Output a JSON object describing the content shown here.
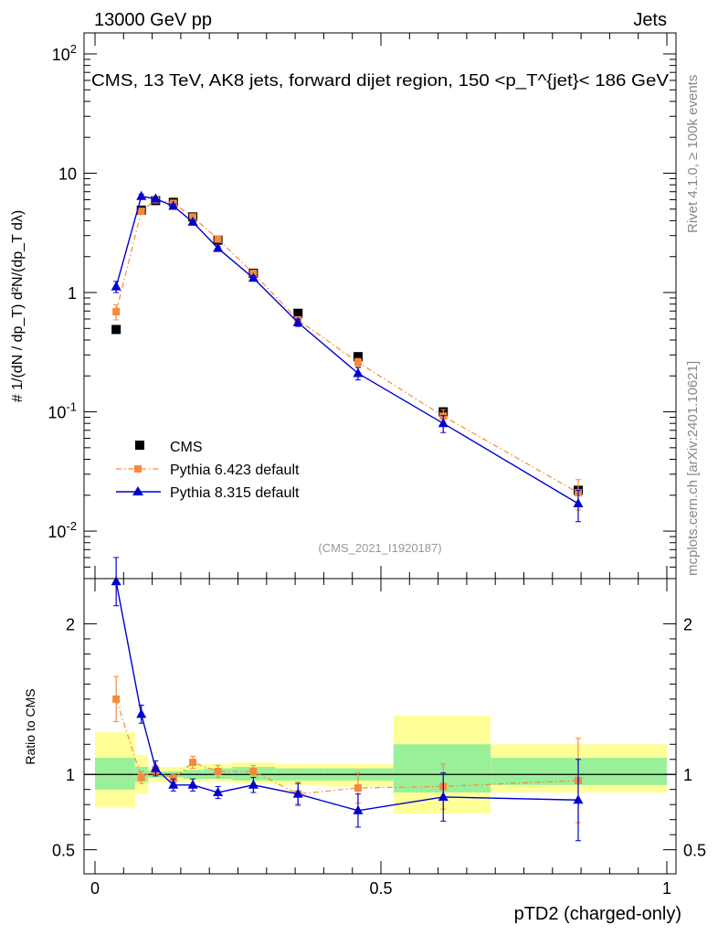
{
  "header": {
    "energy_label": "13000 GeV pp",
    "process_label": "Jets",
    "side_top": "Rivet 4.1.0, ≥ 100k events",
    "side_bottom": "mcplots.cern.ch [arXiv:2401.10621]"
  },
  "chart_data": {
    "type": "line",
    "title": "CMS, 13 TeV, AK8 jets, forward dijet region, 150 <p_T^{jet}< 186 GeV",
    "analysis_tag": "(CMS_2021_I1920187)",
    "xlabel": "pTD2 (charged-only)",
    "ylabel": "# 1/(dN / dp_T) d²N/(dp_T dλ)",
    "xlim": [
      0,
      1
    ],
    "x_ticks": [
      "0",
      "0.5",
      "1"
    ],
    "main": {
      "yscale": "log",
      "ylim": [
        0.004,
        150
      ],
      "y_ticks": [
        "10^-2",
        "10^-1",
        "1",
        "10",
        "10^2"
      ],
      "series": [
        {
          "name": "CMS",
          "color": "#000000",
          "marker": "square",
          "x": [
            0.037,
            0.081,
            0.106,
            0.137,
            0.171,
            0.215,
            0.277,
            0.355,
            0.46,
            0.609,
            0.845
          ],
          "y": [
            0.49,
            4.9,
            5.9,
            5.7,
            4.3,
            2.75,
            1.45,
            0.67,
            0.29,
            0.1,
            0.022
          ]
        },
        {
          "name": "Pythia 6.423 default",
          "color": "#f58a3c",
          "marker": "square",
          "line": "dashdot",
          "x": [
            0.037,
            0.081,
            0.106,
            0.137,
            0.171,
            0.215,
            0.277,
            0.355,
            0.46,
            0.609,
            0.845
          ],
          "y": [
            0.69,
            4.8,
            6.0,
            5.6,
            4.3,
            2.8,
            1.45,
            0.59,
            0.26,
            0.092,
            0.021
          ],
          "err": [
            0.1,
            0.2,
            0.2,
            0.2,
            0.15,
            0.1,
            0.06,
            0.03,
            0.02,
            0.012,
            0.006
          ]
        },
        {
          "name": "Pythia 8.315 default",
          "color": "#0000d0",
          "marker": "triangle",
          "line": "solid",
          "x": [
            0.037,
            0.081,
            0.106,
            0.137,
            0.171,
            0.215,
            0.277,
            0.355,
            0.46,
            0.609,
            0.845
          ],
          "y": [
            1.12,
            6.4,
            6.1,
            5.3,
            3.9,
            2.35,
            1.32,
            0.56,
            0.21,
            0.08,
            0.017
          ],
          "err": [
            0.12,
            0.25,
            0.25,
            0.2,
            0.15,
            0.1,
            0.06,
            0.04,
            0.025,
            0.013,
            0.005
          ]
        }
      ]
    },
    "ratio": {
      "ylabel": "Ratio to CMS",
      "ylim": [
        0.34,
        2.3
      ],
      "y_ticks": [
        "0.5",
        "1",
        "2"
      ],
      "bands": [
        {
          "x0": 0.0,
          "x1": 0.07,
          "y_lo": 0.78,
          "y_hi": 1.28,
          "g_lo": 0.9,
          "g_hi": 1.11
        },
        {
          "x0": 0.07,
          "x1": 0.093,
          "y_lo": 0.87,
          "y_hi": 1.13,
          "g_lo": 0.95,
          "g_hi": 1.05
        },
        {
          "x0": 0.093,
          "x1": 0.121,
          "y_lo": 0.95,
          "y_hi": 1.05,
          "g_lo": 0.98,
          "g_hi": 1.02
        },
        {
          "x0": 0.121,
          "x1": 0.155,
          "y_lo": 0.95,
          "y_hi": 1.05,
          "g_lo": 0.98,
          "g_hi": 1.02
        },
        {
          "x0": 0.155,
          "x1": 0.19,
          "y_lo": 0.95,
          "y_hi": 1.06,
          "g_lo": 0.97,
          "g_hi": 1.03
        },
        {
          "x0": 0.19,
          "x1": 0.24,
          "y_lo": 0.95,
          "y_hi": 1.07,
          "g_lo": 0.97,
          "g_hi": 1.04
        },
        {
          "x0": 0.24,
          "x1": 0.315,
          "y_lo": 0.94,
          "y_hi": 1.08,
          "g_lo": 0.96,
          "g_hi": 1.05
        },
        {
          "x0": 0.315,
          "x1": 0.4,
          "y_lo": 0.93,
          "y_hi": 1.07,
          "g_lo": 0.96,
          "g_hi": 1.04
        },
        {
          "x0": 0.4,
          "x1": 0.522,
          "y_lo": 0.92,
          "y_hi": 1.07,
          "g_lo": 0.96,
          "g_hi": 1.04
        },
        {
          "x0": 0.522,
          "x1": 0.692,
          "y_lo": 0.74,
          "y_hi": 1.39,
          "g_lo": 0.88,
          "g_hi": 1.2
        },
        {
          "x0": 0.692,
          "x1": 1.0,
          "y_lo": 0.88,
          "y_hi": 1.2,
          "g_lo": 0.93,
          "g_hi": 1.11
        }
      ],
      "series": [
        {
          "name": "Pythia 6.423 default",
          "color": "#f58a3c",
          "marker": "square",
          "line": "dashdot",
          "x": [
            0.037,
            0.081,
            0.106,
            0.137,
            0.171,
            0.215,
            0.277,
            0.355,
            0.46,
            0.609,
            0.845
          ],
          "y": [
            1.5,
            0.98,
            1.03,
            0.97,
            1.08,
            1.02,
            1.02,
            0.87,
            0.91,
            0.92,
            0.96
          ],
          "err": [
            0.15,
            0.04,
            0.03,
            0.03,
            0.04,
            0.04,
            0.04,
            0.08,
            0.1,
            0.15,
            0.28
          ]
        },
        {
          "name": "Pythia 8.315 default",
          "color": "#0000d0",
          "marker": "triangle",
          "line": "solid",
          "x": [
            0.037,
            0.081,
            0.106,
            0.137,
            0.171,
            0.215,
            0.277,
            0.355,
            0.46,
            0.609,
            0.845
          ],
          "y": [
            2.28,
            1.4,
            1.04,
            0.93,
            0.93,
            0.88,
            0.93,
            0.87,
            0.76,
            0.85,
            0.83
          ],
          "err": [
            0.16,
            0.06,
            0.05,
            0.04,
            0.04,
            0.04,
            0.05,
            0.07,
            0.11,
            0.16,
            0.27
          ]
        }
      ]
    },
    "legend": {
      "position": "middle-left",
      "entries": [
        "CMS",
        "Pythia 6.423 default",
        "Pythia 8.315 default"
      ]
    }
  }
}
